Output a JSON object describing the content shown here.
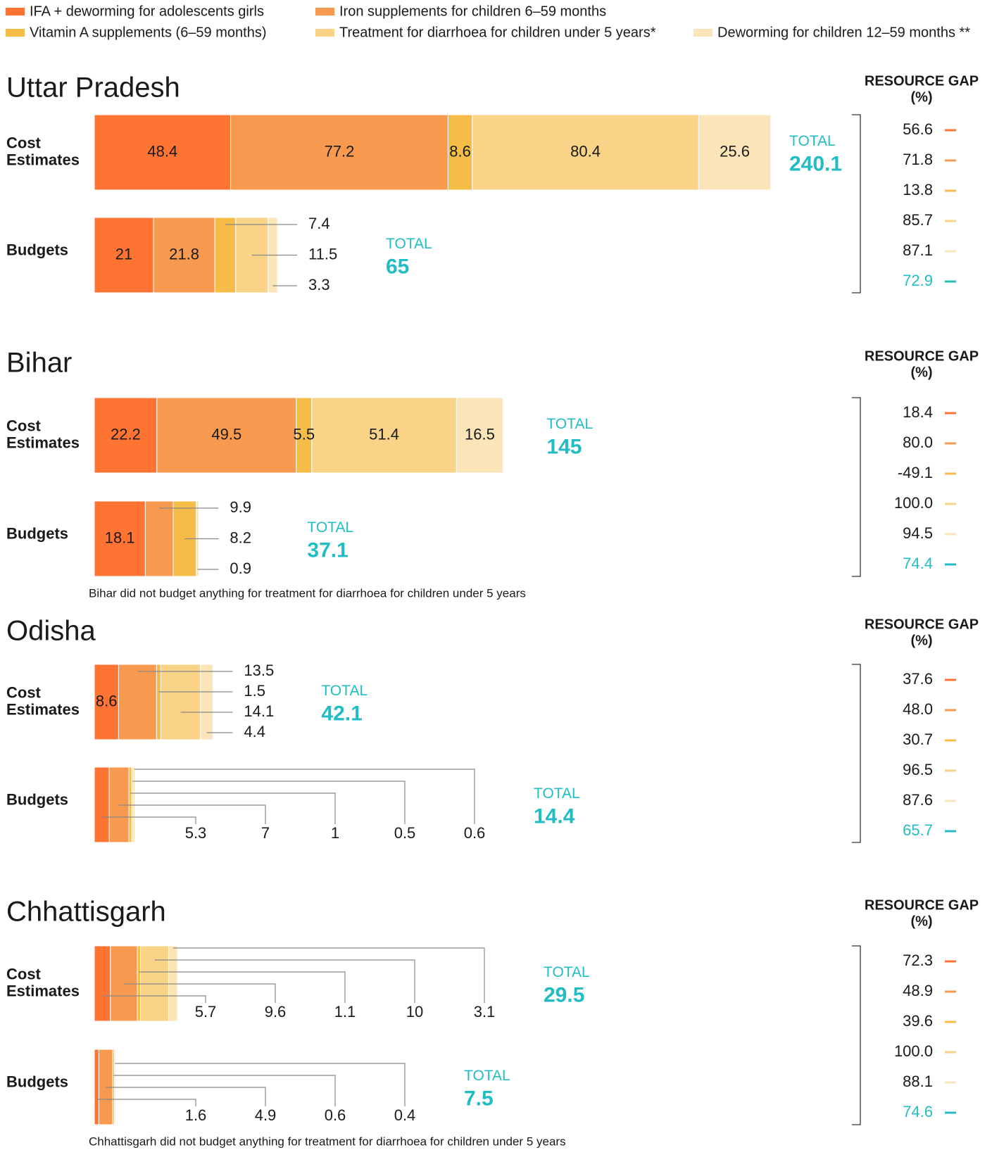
{
  "chart_data": {
    "type": "stacked_bar",
    "series": [
      {
        "name": "IFA + deworming for adolescents girls",
        "color": "#ff7433"
      },
      {
        "name": "Iron supplements for children 6–59 months",
        "color": "#f79a50"
      },
      {
        "name": "Vitamin A supplements (6–59 months)",
        "color": "#f6bc48"
      },
      {
        "name": "Treatment for diarrhoea for children under 5 years*",
        "color": "#f9d388"
      },
      {
        "name": "Deworming for children 12–59 months **",
        "color": "#fbe5b8"
      }
    ],
    "total_color": "#22bdc4",
    "total_label": "TOTAL",
    "cost_label": [
      "Cost",
      "Estimates"
    ],
    "budget_label": "Budgets",
    "resource_gap_title": [
      "RESOURCE GAP",
      "(%)"
    ],
    "panels": [
      {
        "title": "Uttar Pradesh",
        "cost": {
          "values": [
            48.4,
            77.2,
            8.6,
            80.4,
            25.6
          ],
          "total": 240.1
        },
        "budget": {
          "values": [
            21,
            21.8,
            7.4,
            11.5,
            3.3
          ],
          "total": 65
        },
        "resource_gap": {
          "values": [
            56.6,
            71.8,
            13.8,
            85.7,
            87.1
          ],
          "total": 72.9
        }
      },
      {
        "title": "Bihar",
        "cost": {
          "values": [
            22.2,
            49.5,
            5.5,
            51.4,
            16.5
          ],
          "total": 145
        },
        "budget": {
          "values": [
            18.1,
            9.9,
            8.2,
            null,
            0.9
          ],
          "total": 37.1
        },
        "resource_gap": {
          "values": [
            18.4,
            80,
            -49.1,
            100,
            94.5
          ],
          "value_labels": [
            "18.4",
            "80.0",
            "-49.1",
            "100.0",
            "94.5"
          ],
          "total": 74.4
        },
        "note": "Bihar did not budget anything for treatment for diarrhoea for children under 5 years"
      },
      {
        "title": "Odisha",
        "cost": {
          "values": [
            8.6,
            13.5,
            1.5,
            14.1,
            4.4
          ],
          "total": 42.1
        },
        "budget": {
          "values": [
            5.3,
            7,
            1,
            0.5,
            0.6
          ],
          "total": 14.4
        },
        "resource_gap": {
          "values": [
            37.6,
            48,
            30.7,
            96.5,
            87.6
          ],
          "value_labels": [
            "37.6",
            "48.0",
            "30.7",
            "96.5",
            "87.6"
          ],
          "total": 65.7
        }
      },
      {
        "title": "Chhattisgarh",
        "cost": {
          "values": [
            5.7,
            9.6,
            1.1,
            10,
            3.1
          ],
          "total": 29.5
        },
        "budget": {
          "values": [
            1.6,
            4.9,
            0.6,
            null,
            0.4
          ],
          "total": 7.5
        },
        "resource_gap": {
          "values": [
            72.3,
            48.9,
            39.6,
            100,
            88.1
          ],
          "value_labels": [
            "72.3",
            "48.9",
            "39.6",
            "100.0",
            "88.1"
          ],
          "total": 74.6
        },
        "note": "Chhattisgarh did not budget anything for treatment for diarrhoea for children under 5 years"
      }
    ]
  }
}
